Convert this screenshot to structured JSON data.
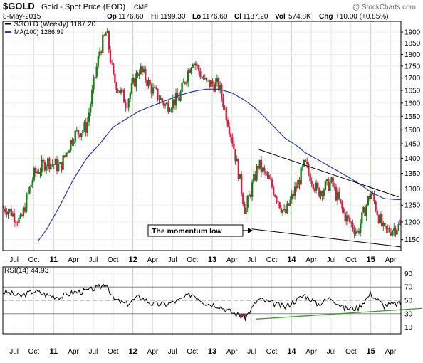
{
  "header": {
    "symbol": "$GOLD",
    "name": "Gold - Spot Price (EOD)",
    "exchange": "CME",
    "date": "8-May-2015",
    "op_label": "Op",
    "op": "1176.60",
    "hi_label": "Hi",
    "hi": "1199.30",
    "lo_label": "Lo",
    "lo": "1176.60",
    "cl_label": "Cl",
    "cl": "1187.20",
    "vol_label": "Vol",
    "vol": "574.8K",
    "chg_label": "Chg",
    "chg": "+10.00 (+0.85%)",
    "watermark": "@ StockCharts.com"
  },
  "legend": {
    "price": "$GOLD (Weekly) 1187.20",
    "ma": "MA(100) 1266.99",
    "rsi": "RSI(14) 44.93"
  },
  "annotation": "The momentum low",
  "colors": {
    "up": "#1a7a1a",
    "down": "#cc2244",
    "ma": "#2a3aa8",
    "rsi_line": "#000000",
    "rsi_trend": "#3a9a2a",
    "rsi_fill_ob": "#5a8a5a",
    "rsi_fill_os": "#b0304a",
    "grid_year": "#b8d8b8",
    "grid_month": "#d8e8d8",
    "frame": "#000000"
  },
  "x_ticks": [
    {
      "label": "Jul",
      "year": false
    },
    {
      "label": "Oct",
      "year": false
    },
    {
      "label": "11",
      "year": true
    },
    {
      "label": "Apr",
      "year": false
    },
    {
      "label": "Jul",
      "year": false
    },
    {
      "label": "Oct",
      "year": false
    },
    {
      "label": "12",
      "year": true
    },
    {
      "label": "Apr",
      "year": false
    },
    {
      "label": "Jul",
      "year": false
    },
    {
      "label": "Oct",
      "year": false
    },
    {
      "label": "13",
      "year": true
    },
    {
      "label": "Apr",
      "year": false
    },
    {
      "label": "Jul",
      "year": false
    },
    {
      "label": "Oct",
      "year": false
    },
    {
      "label": "14",
      "year": true
    },
    {
      "label": "Apr",
      "year": false
    },
    {
      "label": "Jul",
      "year": false
    },
    {
      "label": "Oct",
      "year": false
    },
    {
      "label": "15",
      "year": true
    },
    {
      "label": "Apr",
      "year": false
    }
  ],
  "chart_data": [
    {
      "type": "line",
      "title": "$GOLD (Weekly)",
      "y_scale": "log",
      "ylim": [
        1120,
        1950
      ],
      "y_ticks": [
        1150,
        1200,
        1250,
        1300,
        1350,
        1400,
        1450,
        1500,
        1550,
        1600,
        1650,
        1700,
        1750,
        1800,
        1850,
        1900
      ],
      "grid": true,
      "x": [
        "2010-06",
        "2010-08",
        "2010-10",
        "2010-12",
        "2011-02",
        "2011-04",
        "2011-06",
        "2011-08",
        "2011-09",
        "2011-10",
        "2011-12",
        "2012-02",
        "2012-04",
        "2012-06",
        "2012-08",
        "2012-10",
        "2012-12",
        "2013-02",
        "2013-04",
        "2013-06",
        "2013-08",
        "2013-10",
        "2013-12",
        "2014-02",
        "2014-03",
        "2014-05",
        "2014-07",
        "2014-09",
        "2014-11",
        "2015-01",
        "2015-03",
        "2015-05"
      ],
      "series": [
        {
          "name": "$GOLD (Weekly)",
          "values": [
            1240,
            1200,
            1345,
            1390,
            1370,
            1480,
            1510,
            1820,
            1900,
            1700,
            1600,
            1740,
            1650,
            1590,
            1620,
            1780,
            1680,
            1670,
            1470,
            1230,
            1380,
            1310,
            1220,
            1320,
            1380,
            1290,
            1320,
            1220,
            1170,
            1290,
            1170,
            1187
          ]
        },
        {
          "name": "MA(100)",
          "values": [
            null,
            null,
            1130,
            1180,
            1250,
            1330,
            1400,
            1450,
            1480,
            1510,
            1540,
            1570,
            1590,
            1610,
            1630,
            1645,
            1655,
            1655,
            1640,
            1610,
            1570,
            1520,
            1470,
            1440,
            1420,
            1395,
            1370,
            1345,
            1320,
            1290,
            1270,
            1267
          ]
        }
      ]
    },
    {
      "type": "line",
      "title": "RSI(14)",
      "ylim": [
        0,
        100
      ],
      "y_ticks": [
        10,
        30,
        50,
        70,
        90
      ],
      "x": [
        "2010-06",
        "2010-08",
        "2010-10",
        "2010-12",
        "2011-02",
        "2011-04",
        "2011-06",
        "2011-08",
        "2011-09",
        "2011-10",
        "2011-12",
        "2012-02",
        "2012-04",
        "2012-06",
        "2012-08",
        "2012-10",
        "2012-12",
        "2013-02",
        "2013-04",
        "2013-06",
        "2013-08",
        "2013-10",
        "2013-12",
        "2014-02",
        "2014-03",
        "2014-05",
        "2014-07",
        "2014-09",
        "2014-11",
        "2015-01",
        "2015-03",
        "2015-05"
      ],
      "series": [
        {
          "name": "RSI(14)",
          "values": [
            62,
            56,
            64,
            58,
            55,
            62,
            64,
            70,
            76,
            52,
            44,
            56,
            44,
            44,
            50,
            60,
            46,
            42,
            32,
            24,
            52,
            46,
            40,
            52,
            58,
            44,
            54,
            38,
            38,
            60,
            42,
            45
          ]
        }
      ]
    }
  ]
}
